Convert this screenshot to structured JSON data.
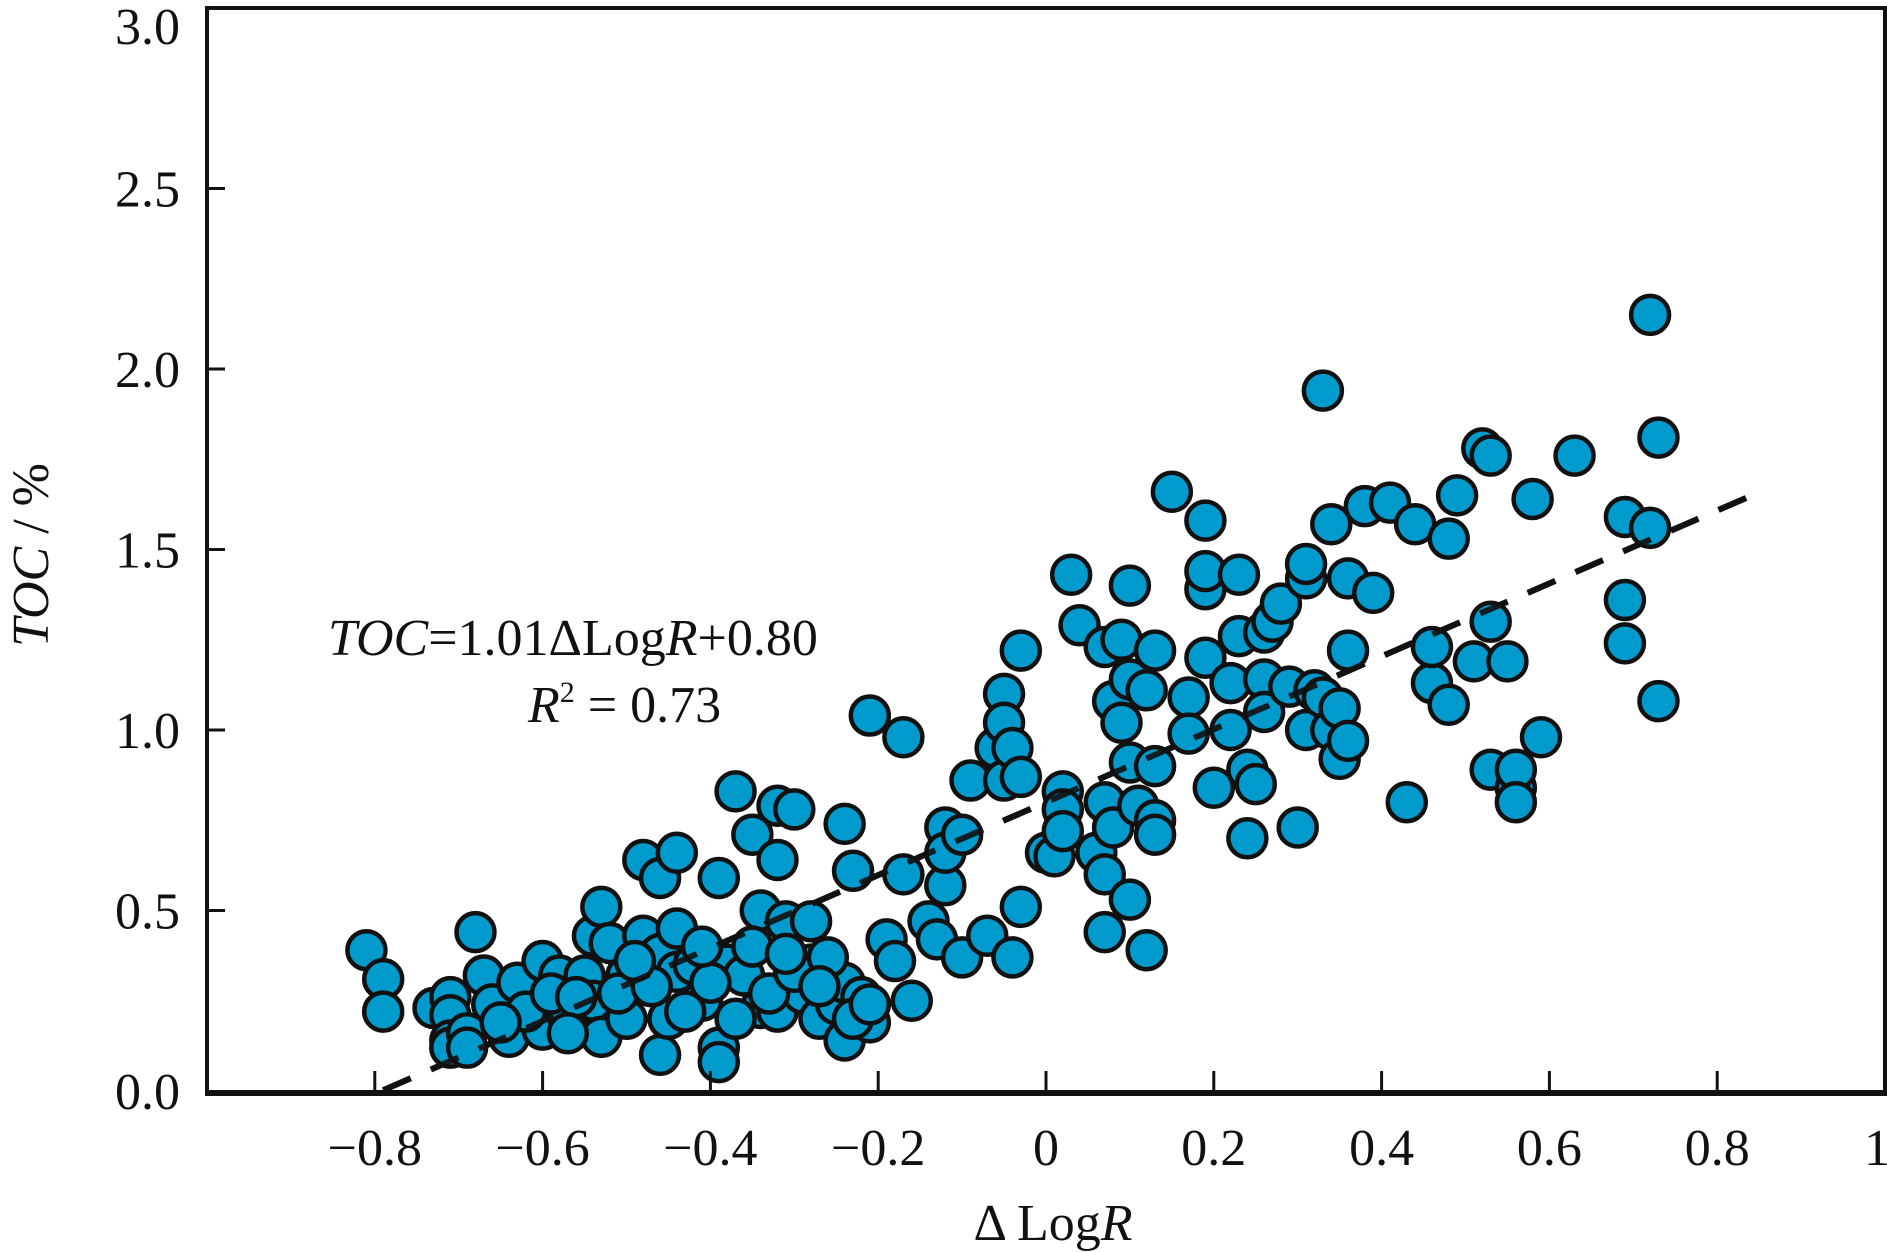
{
  "chart_data": {
    "type": "scatter",
    "title": "",
    "xlabel_segments": [
      {
        "text": "Δ Log",
        "italic": false
      },
      {
        "text": "R",
        "italic": true
      }
    ],
    "ylabel_segments": [
      {
        "text": "TOC",
        "italic": true
      },
      {
        "text": " / %",
        "italic": false
      }
    ],
    "xlim": [
      -1.0,
      1.0
    ],
    "ylim": [
      0.0,
      3.0
    ],
    "x_ticks": [
      -0.8,
      -0.6,
      -0.4,
      -0.2,
      0,
      0.2,
      0.4,
      0.6,
      0.8,
      1
    ],
    "x_tick_labels": [
      "−0.8",
      "−0.6",
      "−0.4",
      "−0.2",
      "0",
      "0.2",
      "0.4",
      "0.6",
      "0.8",
      "1"
    ],
    "y_ticks": [
      0,
      0.5,
      1.0,
      1.5,
      2.0,
      2.5,
      3.0
    ],
    "y_tick_labels": [
      "0.0",
      "0.5",
      "1.0",
      "1.5",
      "2.0",
      "2.5",
      "3.0"
    ],
    "grid": false,
    "legend": "none",
    "marker_color": "#009ACD",
    "marker_edge_color": "#111111",
    "fit_line": {
      "slope": 1.01,
      "intercept": 0.8,
      "x_range": [
        -0.79,
        0.85
      ],
      "style": "dashed"
    },
    "annotations": [
      {
        "segments": [
          {
            "text": "TOC",
            "italic": true
          },
          {
            "text": "=1.01ΔLog",
            "italic": false
          },
          {
            "text": "R",
            "italic": true
          },
          {
            "text": "+0.80",
            "italic": false
          }
        ]
      },
      {
        "segments": [
          {
            "text": "R",
            "italic": true
          },
          {
            "text": "2",
            "italic": false,
            "sup": true
          },
          {
            "text": " = 0.73",
            "italic": false
          }
        ]
      }
    ],
    "points": [
      [
        -0.81,
        0.39
      ],
      [
        -0.79,
        0.31
      ],
      [
        -0.79,
        0.22
      ],
      [
        -0.68,
        0.44
      ],
      [
        -0.73,
        0.23
      ],
      [
        -0.71,
        0.26
      ],
      [
        -0.71,
        0.21
      ],
      [
        -0.71,
        0.14
      ],
      [
        -0.71,
        0.12
      ],
      [
        -0.69,
        0.16
      ],
      [
        -0.69,
        0.12
      ],
      [
        -0.67,
        0.32
      ],
      [
        -0.66,
        0.24
      ],
      [
        -0.64,
        0.15
      ],
      [
        -0.63,
        0.3
      ],
      [
        -0.6,
        0.36
      ],
      [
        -0.6,
        0.17
      ],
      [
        -0.58,
        0.32
      ],
      [
        -0.57,
        0.21
      ],
      [
        -0.54,
        0.43
      ],
      [
        -0.53,
        0.51
      ],
      [
        -0.55,
        0.32
      ],
      [
        -0.54,
        0.25
      ],
      [
        -0.52,
        0.41
      ],
      [
        -0.53,
        0.15
      ],
      [
        -0.5,
        0.32
      ],
      [
        -0.5,
        0.2
      ],
      [
        -0.48,
        0.43
      ],
      [
        -0.48,
        0.64
      ],
      [
        -0.46,
        0.59
      ],
      [
        -0.46,
        0.38
      ],
      [
        -0.46,
        0.1
      ],
      [
        -0.45,
        0.2
      ],
      [
        -0.44,
        0.66
      ],
      [
        -0.44,
        0.45
      ],
      [
        -0.44,
        0.33
      ],
      [
        -0.42,
        0.35
      ],
      [
        -0.41,
        0.25
      ],
      [
        -0.39,
        0.59
      ],
      [
        -0.39,
        0.12
      ],
      [
        -0.39,
        0.08
      ],
      [
        -0.38,
        0.35
      ],
      [
        -0.37,
        0.83
      ],
      [
        -0.36,
        0.32
      ],
      [
        -0.35,
        0.71
      ],
      [
        -0.34,
        0.5
      ],
      [
        -0.34,
        0.23
      ],
      [
        -0.32,
        0.79
      ],
      [
        -0.32,
        0.64
      ],
      [
        -0.31,
        0.47
      ],
      [
        -0.32,
        0.22
      ],
      [
        -0.3,
        0.78
      ],
      [
        -0.29,
        0.27
      ],
      [
        -0.28,
        0.35
      ],
      [
        -0.28,
        0.47
      ],
      [
        -0.27,
        0.2
      ],
      [
        -0.25,
        0.24
      ],
      [
        -0.24,
        0.3
      ],
      [
        -0.24,
        0.74
      ],
      [
        -0.24,
        0.14
      ],
      [
        -0.23,
        0.61
      ],
      [
        -0.22,
        0.26
      ],
      [
        -0.21,
        0.19
      ],
      [
        -0.21,
        1.04
      ],
      [
        -0.19,
        0.42
      ],
      [
        -0.18,
        0.36
      ],
      [
        -0.17,
        0.6
      ],
      [
        -0.17,
        0.98
      ],
      [
        -0.16,
        0.25
      ],
      [
        -0.14,
        0.47
      ],
      [
        -0.13,
        0.42
      ],
      [
        -0.12,
        0.73
      ],
      [
        -0.12,
        0.57
      ],
      [
        -0.12,
        0.66
      ],
      [
        -0.1,
        0.71
      ],
      [
        -0.1,
        0.37
      ],
      [
        -0.09,
        0.86
      ],
      [
        -0.07,
        0.43
      ],
      [
        -0.06,
        0.95
      ],
      [
        -0.05,
        1.1
      ],
      [
        -0.05,
        1.02
      ],
      [
        -0.05,
        0.86
      ],
      [
        -0.04,
        0.95
      ],
      [
        -0.03,
        1.22
      ],
      [
        -0.04,
        0.37
      ],
      [
        -0.03,
        0.51
      ],
      [
        -0.03,
        0.87
      ],
      [
        0.0,
        0.66
      ],
      [
        0.01,
        0.65
      ],
      [
        0.02,
        0.83
      ],
      [
        0.02,
        0.78
      ],
      [
        0.02,
        0.72
      ],
      [
        0.03,
        1.43
      ],
      [
        0.04,
        1.29
      ],
      [
        0.06,
        0.66
      ],
      [
        0.07,
        1.23
      ],
      [
        0.07,
        0.44
      ],
      [
        0.07,
        0.8
      ],
      [
        0.07,
        0.6
      ],
      [
        0.08,
        1.08
      ],
      [
        0.08,
        0.73
      ],
      [
        0.09,
        1.25
      ],
      [
        0.09,
        1.02
      ],
      [
        0.1,
        1.14
      ],
      [
        0.1,
        0.91
      ],
      [
        0.1,
        1.4
      ],
      [
        0.1,
        0.53
      ],
      [
        0.11,
        0.79
      ],
      [
        0.12,
        0.39
      ],
      [
        0.12,
        1.11
      ],
      [
        0.13,
        1.22
      ],
      [
        0.13,
        0.9
      ],
      [
        0.13,
        0.75
      ],
      [
        0.13,
        0.71
      ],
      [
        0.15,
        1.66
      ],
      [
        0.17,
        1.09
      ],
      [
        0.17,
        0.99
      ],
      [
        0.19,
        1.39
      ],
      [
        0.19,
        1.2
      ],
      [
        0.19,
        1.44
      ],
      [
        0.19,
        1.58
      ],
      [
        0.2,
        0.84
      ],
      [
        0.22,
        1.0
      ],
      [
        0.22,
        1.13
      ],
      [
        0.23,
        1.43
      ],
      [
        0.23,
        1.26
      ],
      [
        0.24,
        0.89
      ],
      [
        0.24,
        0.7
      ],
      [
        0.25,
        0.85
      ],
      [
        0.26,
        1.27
      ],
      [
        0.26,
        1.14
      ],
      [
        0.26,
        1.05
      ],
      [
        0.27,
        1.3
      ],
      [
        0.28,
        1.35
      ],
      [
        0.29,
        1.12
      ],
      [
        0.3,
        0.73
      ],
      [
        0.31,
        1.42
      ],
      [
        0.31,
        1.46
      ],
      [
        0.31,
        1.0
      ],
      [
        0.32,
        1.11
      ],
      [
        0.33,
        1.09
      ],
      [
        0.33,
        1.94
      ],
      [
        0.34,
        1.0
      ],
      [
        0.34,
        1.57
      ],
      [
        0.35,
        1.06
      ],
      [
        0.35,
        0.92
      ],
      [
        0.36,
        1.22
      ],
      [
        0.36,
        1.42
      ],
      [
        0.36,
        0.97
      ],
      [
        0.38,
        1.62
      ],
      [
        0.39,
        1.38
      ],
      [
        0.41,
        1.63
      ],
      [
        0.43,
        0.8
      ],
      [
        0.44,
        1.57
      ],
      [
        0.46,
        1.13
      ],
      [
        0.46,
        1.23
      ],
      [
        0.48,
        1.53
      ],
      [
        0.48,
        1.07
      ],
      [
        0.49,
        1.65
      ],
      [
        0.51,
        1.19
      ],
      [
        0.52,
        1.78
      ],
      [
        0.53,
        0.89
      ],
      [
        0.53,
        1.76
      ],
      [
        0.53,
        1.3
      ],
      [
        0.55,
        1.19
      ],
      [
        0.56,
        0.84
      ],
      [
        0.56,
        0.89
      ],
      [
        0.56,
        0.8
      ],
      [
        0.58,
        1.64
      ],
      [
        0.59,
        0.98
      ],
      [
        0.63,
        1.76
      ],
      [
        0.69,
        1.36
      ],
      [
        0.69,
        1.24
      ],
      [
        0.69,
        1.59
      ],
      [
        0.72,
        1.56
      ],
      [
        0.72,
        2.15
      ],
      [
        0.73,
        1.81
      ],
      [
        0.73,
        1.08
      ],
      [
        -0.62,
        0.22
      ],
      [
        -0.59,
        0.27
      ],
      [
        -0.56,
        0.26
      ],
      [
        -0.51,
        0.27
      ],
      [
        -0.47,
        0.29
      ],
      [
        -0.43,
        0.22
      ],
      [
        -0.4,
        0.3
      ],
      [
        -0.37,
        0.2
      ],
      [
        -0.33,
        0.27
      ],
      [
        -0.3,
        0.33
      ],
      [
        -0.26,
        0.37
      ],
      [
        -0.23,
        0.2
      ],
      [
        -0.21,
        0.24
      ],
      [
        -0.57,
        0.16
      ],
      [
        -0.49,
        0.36
      ],
      [
        -0.35,
        0.4
      ],
      [
        -0.31,
        0.38
      ],
      [
        -0.65,
        0.19
      ],
      [
        -0.41,
        0.4
      ],
      [
        -0.27,
        0.29
      ]
    ]
  }
}
